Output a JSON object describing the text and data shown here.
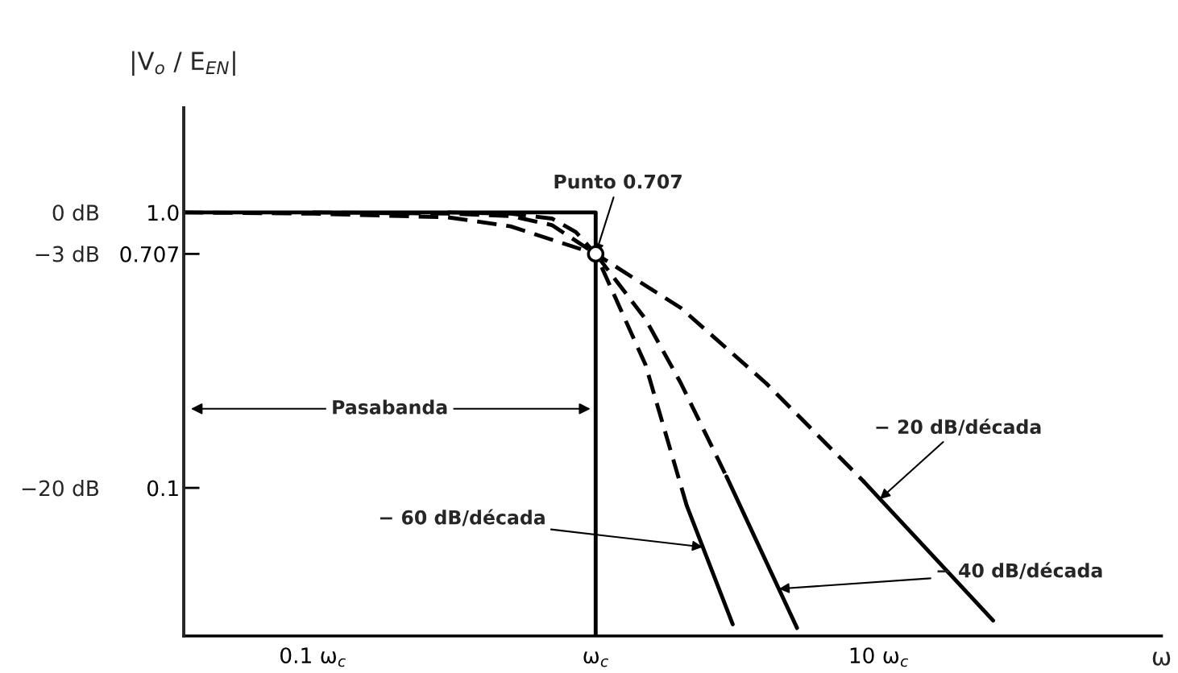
{
  "chart_data": {
    "type": "line",
    "xlabel": "ω",
    "ylabel": "|V$_{o}$ / E$_{EN}$|",
    "log": "xy",
    "xlim": [
      0.035,
      100
    ],
    "ylim": [
      0.029,
      2.4
    ],
    "xticks": [
      {
        "value": 0.1,
        "label": "0.1 ω$_{c}$"
      },
      {
        "value": 1,
        "label": "ω$_{c}$"
      },
      {
        "value": 10,
        "label": "10 ω$_{c}$"
      }
    ],
    "yticks": [
      {
        "value": 1,
        "label": "1.0"
      },
      0.707,
      0.1
    ],
    "y2lim": [
      -30.75,
      7.6
    ],
    "y2ticks": [
      {
        "value": 0,
        "label": "0 dB"
      },
      {
        "value": -3,
        "label": "−3 dB"
      },
      {
        "value": -20,
        "label": "−20 dB"
      }
    ],
    "grid": false,
    "legend": false,
    "series": [
      {
        "color": "#000000",
        "line_style": "solid",
        "x": [
          0.035,
          1,
          1
        ],
        "values": [
          1,
          1,
          0.029
        ]
      },
      {
        "color": "#000000",
        "line_style": "dashed",
        "x": [
          0.035,
          0.1,
          0.3,
          0.5,
          1,
          2,
          4,
          8.9
        ],
        "values": [
          1,
          0.99,
          0.96,
          0.89,
          0.707,
          0.45,
          0.24,
          0.105
        ]
      },
      {
        "color": "#000000",
        "line_style": "solid",
        "x": [
          8.9,
          25.4
        ],
        "values": [
          0.105,
          0.033
        ]
      },
      {
        "color": "#000000",
        "line_style": "dashed",
        "x": [
          0.1,
          0.3,
          0.5,
          0.7,
          1,
          1.5,
          2,
          2.9
        ],
        "values": [
          1,
          0.99,
          0.97,
          0.9,
          0.707,
          0.41,
          0.24,
          0.11
        ]
      },
      {
        "color": "#000000",
        "line_style": "solid",
        "x": [
          2.9,
          5.15
        ],
        "values": [
          0.11,
          0.031
        ]
      },
      {
        "color": "#000000",
        "line_style": "dashed",
        "x": [
          0.3,
          0.5,
          0.7,
          0.85,
          1,
          1.5,
          2.1
        ],
        "values": [
          1,
          0.99,
          0.95,
          0.85,
          0.707,
          0.28,
          0.086
        ]
      },
      {
        "color": "#000000",
        "line_style": "solid",
        "x": [
          2.1,
          3.05
        ],
        "values": [
          0.086,
          0.032
        ]
      },
      {
        "type": "scatter",
        "color": "#000000",
        "marker": "circle",
        "x": [
          1
        ],
        "values": [
          0.707
        ]
      }
    ],
    "annotations": [
      {
        "text": "Punto 0.707",
        "x": 1,
        "y": 0.707
      },
      {
        "text": "− 20 dB/década",
        "x": 10.1,
        "y": 0.091
      },
      {
        "text": "− 40 dB/década",
        "x": 4.44,
        "y": 0.043
      },
      {
        "text": "− 60 dB/década",
        "x": 2.39,
        "y": 0.061
      },
      "Pasabanda"
    ]
  }
}
